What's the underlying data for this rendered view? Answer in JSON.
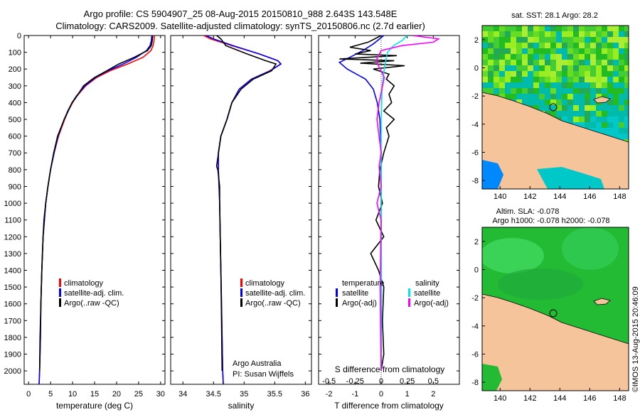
{
  "header": {
    "line1": "Argo profile: CS 5904907_25 08-Aug-2015 20150810_988 2.643S 143.548E",
    "line2": "Climatology: CARS2009. Satellite-adjusted climatology: synTS_20150806.nc (2.7d earlier)"
  },
  "credit": {
    "vertical": "©IMOS 13-Aug-2015 20:46:09",
    "argo_line1": "Argo Australia",
    "argo_line2": "PI: Susan Wijffels"
  },
  "colors": {
    "climatology": "#ff0000",
    "satellite": "#0000ff",
    "argo": "#000000",
    "salinity_satellite": "#00e5ee",
    "salinity_argo": "#ff00ff",
    "land": "#f5c49b"
  },
  "legends": {
    "temperature": [
      "climatology",
      "satellite-adj. clim.",
      "Argo(..raw -QC)"
    ],
    "salinity": [
      "climatology",
      "satellite-adj. clim.",
      "Argo(..raw -QC)"
    ],
    "difference_title_left": "temperature",
    "difference_title_right": "salinity",
    "difference_left": [
      "satellite",
      "Argo(-adj)"
    ],
    "difference_right": [
      "satellite",
      "Argo(-adj)"
    ]
  },
  "maps": {
    "sst": {
      "title": "sat. SST: 28.1  Argo: 28.2",
      "x_ticks": [
        "140",
        "142",
        "144",
        "146",
        "148"
      ],
      "y_ticks": [
        "2",
        "0",
        "-2",
        "-4",
        "-6",
        "-8"
      ]
    },
    "sla": {
      "title_line1": "Altim. SLA: -0.078",
      "title_line2": "Argo h1000: -0.078 h2000: -0.078",
      "x_ticks": [
        "140",
        "142",
        "144",
        "146",
        "148"
      ],
      "y_ticks": [
        "2",
        "0",
        "-2",
        "-4",
        "-6",
        "-8"
      ]
    },
    "profile_marker": {
      "lon": 143.548,
      "lat": -2.643
    }
  },
  "chart_data": [
    {
      "type": "line",
      "id": "temperature",
      "xlabel": "temperature (deg C)",
      "ylabel": "",
      "xlim": [
        -1,
        31
      ],
      "ylim": [
        2080,
        0
      ],
      "y_reversed": true,
      "x_ticks": [
        0,
        5,
        10,
        15,
        20,
        25,
        30
      ],
      "x_tick_labels": [
        "0",
        "5",
        "10",
        "15",
        "20",
        "25",
        "30"
      ],
      "y_ticks": [
        0,
        100,
        200,
        300,
        400,
        500,
        600,
        700,
        800,
        900,
        1000,
        1100,
        1200,
        1300,
        1400,
        1500,
        1600,
        1700,
        1800,
        1900,
        2000
      ],
      "y_tick_labels": [
        "0",
        "100",
        "200",
        "300",
        "400",
        "500",
        "600",
        "700",
        "800",
        "900",
        "1000",
        "1100",
        "1200",
        "1300",
        "1400",
        "1500",
        "1600",
        "1700",
        "1800",
        "1900",
        "2000"
      ],
      "series": [
        {
          "name": "climatology",
          "color": "#ff0000",
          "x": [
            28.6,
            28.5,
            28.3,
            27.8,
            26.0,
            22.5,
            18.5,
            15.5,
            13.0,
            11.0,
            10.0,
            9.0,
            8.2,
            6.8,
            5.8,
            5.0,
            4.4,
            3.9,
            3.6,
            3.3,
            3.0,
            2.8,
            2.7,
            2.6,
            2.5,
            2.4
          ],
          "y": [
            0,
            30,
            60,
            90,
            130,
            170,
            210,
            250,
            300,
            360,
            400,
            450,
            500,
            600,
            700,
            800,
            900,
            1000,
            1100,
            1200,
            1400,
            1600,
            1800,
            1900,
            2000,
            2080
          ]
        },
        {
          "name": "satellite-adj. clim.",
          "color": "#0000ff",
          "x": [
            28.0,
            27.9,
            27.6,
            26.8,
            24.5,
            21.5,
            18.0,
            15.2,
            12.8,
            10.9,
            9.9,
            8.9,
            8.1,
            6.7,
            5.8,
            5.0,
            4.4,
            3.9,
            3.6,
            3.3,
            3.0,
            2.8,
            2.7,
            2.6,
            2.5,
            2.4
          ],
          "y": [
            0,
            30,
            60,
            90,
            130,
            170,
            210,
            250,
            300,
            360,
            400,
            450,
            500,
            600,
            700,
            800,
            900,
            1000,
            1100,
            1200,
            1400,
            1600,
            1800,
            1900,
            2000,
            2080
          ]
        },
        {
          "name": "Argo(..raw -QC)",
          "color": "#000000",
          "x": [
            28.2,
            28.1,
            27.9,
            27.0,
            24.0,
            20.5,
            17.8,
            15.0,
            12.5,
            11.0,
            9.9,
            9.0,
            8.1,
            6.6,
            5.7,
            5.0,
            4.4,
            3.9,
            3.5,
            3.3,
            3.0,
            2.8,
            2.6,
            2.5
          ],
          "y": [
            0,
            30,
            60,
            90,
            130,
            170,
            210,
            250,
            300,
            360,
            400,
            450,
            500,
            600,
            700,
            800,
            900,
            1000,
            1100,
            1200,
            1400,
            1600,
            1800,
            2000
          ]
        }
      ]
    },
    {
      "type": "line",
      "id": "salinity",
      "xlabel": "salinity",
      "ylabel": "",
      "xlim": [
        33.8,
        36.1
      ],
      "ylim": [
        2080,
        0
      ],
      "y_reversed": true,
      "x_ticks": [
        34,
        34.5,
        35,
        35.5,
        36
      ],
      "x_tick_labels": [
        "34",
        "34.5",
        "35",
        "35.5",
        "36"
      ],
      "series": [
        {
          "name": "climatology",
          "color": "#ff0000",
          "x": [
            34.34,
            34.45,
            34.8,
            35.25,
            35.55,
            35.6,
            35.42,
            35.12,
            34.92,
            34.8,
            34.72,
            34.62,
            34.58,
            34.58,
            34.59,
            34.6,
            34.61,
            34.62,
            34.63,
            34.64,
            34.65,
            34.66
          ],
          "y": [
            0,
            20,
            60,
            110,
            150,
            170,
            210,
            260,
            320,
            400,
            500,
            600,
            700,
            800,
            900,
            1000,
            1200,
            1400,
            1600,
            1800,
            2000,
            2080
          ]
        },
        {
          "name": "satellite-adj. clim.",
          "color": "#0000ff",
          "x": [
            34.38,
            34.5,
            34.82,
            35.25,
            35.55,
            35.6,
            35.43,
            35.12,
            34.92,
            34.8,
            34.72,
            34.62,
            34.58,
            34.58,
            34.59,
            34.6,
            34.61,
            34.62,
            34.63,
            34.64,
            34.65,
            34.66
          ],
          "y": [
            0,
            20,
            60,
            110,
            150,
            170,
            210,
            260,
            320,
            400,
            500,
            600,
            700,
            800,
            900,
            1000,
            1200,
            1400,
            1600,
            1800,
            2000,
            2080
          ]
        },
        {
          "name": "Argo(..raw -QC)",
          "color": "#000000",
          "x": [
            34.55,
            34.62,
            34.7,
            35.05,
            35.35,
            35.52,
            35.45,
            35.15,
            34.95,
            34.8,
            34.72,
            34.62,
            34.55,
            34.57,
            34.6,
            34.6,
            34.61,
            34.62,
            34.63,
            34.64
          ],
          "y": [
            0,
            20,
            60,
            110,
            150,
            170,
            210,
            260,
            320,
            400,
            500,
            600,
            780,
            800,
            900,
            1000,
            1200,
            1400,
            1700,
            2000
          ]
        }
      ]
    },
    {
      "type": "line",
      "id": "difference",
      "xlabel": "T difference from climatology",
      "x2label": "S difference from climatology",
      "xlim": [
        -2.4,
        3.0
      ],
      "ylim": [
        2080,
        0
      ],
      "y_reversed": true,
      "x_ticks": [
        -2,
        -1,
        0,
        1,
        2
      ],
      "x_tick_labels": [
        "-2",
        "-1",
        "0",
        "1",
        "2"
      ],
      "s_ticks": [
        -0.5,
        -0.25,
        0,
        0.25,
        0.5
      ],
      "s_tick_labels": [
        "-0.5",
        "-0.25",
        "0",
        "0.25",
        "0.5"
      ],
      "series": [
        {
          "name": "satellite",
          "group": "temperature",
          "color": "#0000ff",
          "x": [
            0.1,
            -0.3,
            -0.7,
            -1.2,
            -1.6,
            -1.3,
            -0.6,
            -0.3,
            -0.15,
            -0.05,
            0,
            0,
            0,
            0
          ],
          "y": [
            0,
            50,
            90,
            130,
            160,
            200,
            260,
            320,
            400,
            500,
            700,
            1000,
            1500,
            2000
          ]
        },
        {
          "name": "Argo(-adj)",
          "group": "temperature",
          "color": "#000000",
          "x": [
            0.0,
            -0.5,
            -1.2,
            -0.4,
            -1.0,
            0.6,
            -1.6,
            0.5,
            -0.8,
            0.9,
            -0.3,
            0.3,
            0.2,
            0.5,
            0.3,
            0.4,
            0.1,
            0.5,
            0.2,
            0.3,
            0.1,
            -0.05,
            -0.1,
            0.05,
            -0.2,
            0.1,
            -0.4,
            -0.1,
            0.1,
            0.05,
            0.1,
            0.0
          ],
          "y": [
            0,
            40,
            70,
            90,
            110,
            120,
            140,
            150,
            165,
            180,
            200,
            230,
            260,
            300,
            350,
            400,
            450,
            500,
            550,
            600,
            700,
            800,
            900,
            1000,
            1100,
            1200,
            1300,
            1400,
            1500,
            1700,
            1900,
            2000
          ]
        },
        {
          "name": "satellite",
          "group": "salinity",
          "color": "#00e5ee",
          "x": [
            0.25,
            0.2,
            0.12,
            0.06,
            0.03,
            0.01,
            0,
            0,
            0,
            0,
            0
          ],
          "y": [
            0,
            30,
            60,
            100,
            200,
            300,
            500,
            800,
            1200,
            1600,
            2000
          ]
        },
        {
          "name": "Argo(-adj)",
          "group": "salinity",
          "color": "#ff00ff",
          "x": [
            0.3,
            0.55,
            0.5,
            0.2,
            0.0,
            -0.05,
            0.03,
            -0.02,
            -0.04,
            0.0,
            -0.02,
            0.0,
            -0.04,
            0.0,
            -0.01,
            0.0
          ],
          "y": [
            0,
            20,
            40,
            60,
            90,
            150,
            250,
            400,
            500,
            700,
            780,
            900,
            1000,
            1100,
            1500,
            2000
          ]
        }
      ]
    }
  ]
}
